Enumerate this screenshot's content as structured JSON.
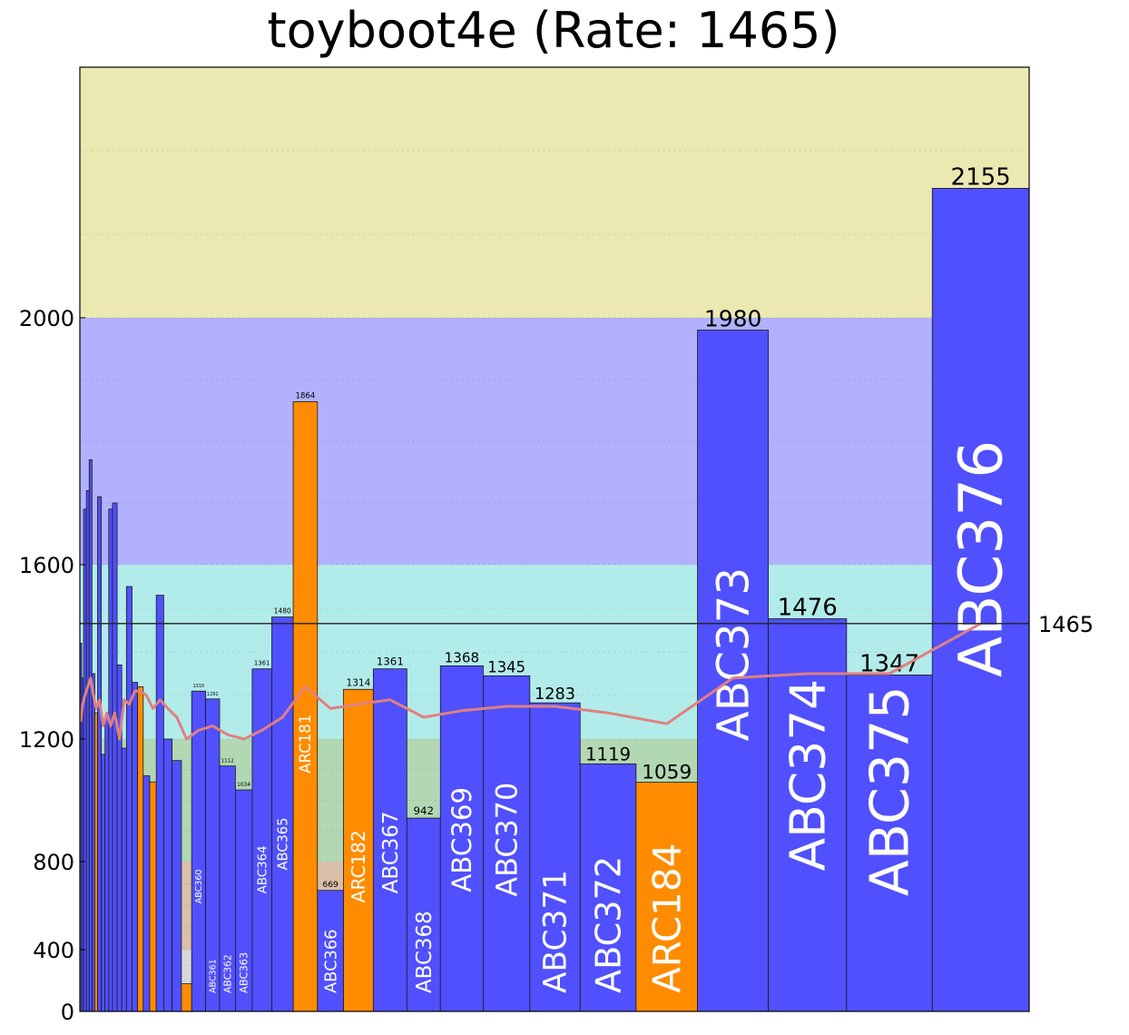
{
  "chart_data": {
    "type": "bar",
    "title": "toyboot4e (Rate: 1465)",
    "ylim": [
      0,
      2300
    ],
    "yticks": [
      0,
      400,
      800,
      1200,
      1600,
      2000
    ],
    "rate_line": {
      "value": 1465,
      "label": "1465"
    },
    "bands": [
      {
        "from": 0,
        "to": 400,
        "color": "#d9d9d9"
      },
      {
        "from": 400,
        "to": 800,
        "color": "#d9c0a9"
      },
      {
        "from": 800,
        "to": 1200,
        "color": "#b1d8b3"
      },
      {
        "from": 1200,
        "to": 1600,
        "color": "#b2ecea"
      },
      {
        "from": 1600,
        "to": 2000,
        "color": "#b1b1fe"
      },
      {
        "from": 2000,
        "to": 2300,
        "color": "#ebe9b1"
      }
    ],
    "bar_colors": {
      "ABC": "#5050ff",
      "ARC": "#ff8c00"
    },
    "curve_color": "#e08080",
    "bars": [
      {
        "label": "",
        "value": 1420,
        "type": "ABC",
        "rating": 1240
      },
      {
        "label": "",
        "value": 1340,
        "type": "ABC",
        "rating": 1280
      },
      {
        "label": "",
        "value": 1690,
        "type": "ABC",
        "rating": 1300
      },
      {
        "label": "",
        "value": 1720,
        "type": "ABC",
        "rating": 1320
      },
      {
        "label": "",
        "value": 1770,
        "type": "ABC",
        "rating": 1340
      },
      {
        "label": "",
        "value": 1350,
        "type": "ABC",
        "rating": 1300
      },
      {
        "label": "",
        "value": 1260,
        "type": "ARC",
        "rating": 1270
      },
      {
        "label": "",
        "value": 1710,
        "type": "ABC",
        "rating": 1290
      },
      {
        "label": "",
        "value": 1150,
        "type": "ABC",
        "rating": 1230
      },
      {
        "label": "",
        "value": 1250,
        "type": "ABC",
        "rating": 1260
      },
      {
        "label": "",
        "value": 1690,
        "type": "ABC",
        "rating": 1230
      },
      {
        "label": "",
        "value": 1700,
        "type": "ABC",
        "rating": 1260
      },
      {
        "label": "",
        "value": 1370,
        "type": "ABC",
        "rating": 1200
      },
      {
        "label": "",
        "value": 1170,
        "type": "ABC",
        "rating": 1290
      },
      {
        "label": "",
        "value": 1550,
        "type": "ABC",
        "rating": 1280
      },
      {
        "label": "",
        "value": 1330,
        "type": "ABC",
        "rating": 1310
      },
      {
        "label": "",
        "value": 1320,
        "type": "ARC",
        "rating": 1310
      },
      {
        "label": "",
        "value": 1080,
        "type": "ABC",
        "rating": 1300
      },
      {
        "label": "",
        "value": 1060,
        "type": "ARC",
        "rating": 1270
      },
      {
        "label": "",
        "value": 1530,
        "type": "ABC",
        "rating": 1290
      },
      {
        "label": "",
        "value": 1200,
        "type": "ABC",
        "rating": 1270
      },
      {
        "label": "",
        "value": 1130,
        "type": "ABC",
        "rating": 1250
      },
      {
        "label": "",
        "value": 179,
        "type": "ARC",
        "rating": 1200
      },
      {
        "label": "ABC360",
        "value": 1310,
        "type": "ABC",
        "rating": 1220
      },
      {
        "label": "ABC361",
        "value": 1292,
        "type": "ABC",
        "rating": 1230
      },
      {
        "label": "ABC362",
        "value": 1112,
        "type": "ABC",
        "rating": 1210
      },
      {
        "label": "ABC363",
        "value": 1034,
        "type": "ABC",
        "rating": 1200
      },
      {
        "label": "ABC364",
        "value": 1361,
        "type": "ABC",
        "rating": 1220
      },
      {
        "label": "ABC365",
        "value": 1480,
        "type": "ABC",
        "rating": 1250
      },
      {
        "label": "ARC181",
        "value": 1864,
        "type": "ARC",
        "rating": 1320
      },
      {
        "label": "ABC366",
        "value": 669,
        "type": "ABC",
        "rating": 1270
      },
      {
        "label": "ARC182",
        "value": 1314,
        "type": "ARC",
        "rating": 1280
      },
      {
        "label": "ABC367",
        "value": 1361,
        "type": "ABC",
        "rating": 1290
      },
      {
        "label": "ABC368",
        "value": 942,
        "type": "ABC",
        "rating": 1250
      },
      {
        "label": "ABC369",
        "value": 1368,
        "type": "ABC",
        "rating": 1265
      },
      {
        "label": "ABC370",
        "value": 1345,
        "type": "ABC",
        "rating": 1275
      },
      {
        "label": "ABC371",
        "value": 1283,
        "type": "ABC",
        "rating": 1275
      },
      {
        "label": "ABC372",
        "value": 1119,
        "type": "ABC",
        "rating": 1260
      },
      {
        "label": "ARC184",
        "value": 1059,
        "type": "ARC",
        "rating": 1235
      },
      {
        "label": "ABC373",
        "value": 1980,
        "type": "ABC",
        "rating": 1340
      },
      {
        "label": "ABC374",
        "value": 1476,
        "type": "ABC",
        "rating": 1350
      },
      {
        "label": "ABC375",
        "value": 1347,
        "type": "ABC",
        "rating": 1350
      },
      {
        "label": "ABC376",
        "value": 2155,
        "type": "ABC",
        "rating": 1465
      }
    ],
    "visible_value_labels": [
      "179",
      "1310",
      "1292",
      "1112",
      "1034",
      "1361",
      "1480",
      "1864",
      "669",
      "1314",
      "1361",
      "942",
      "1368",
      "1345",
      "1283",
      "1119",
      "1059",
      "1980",
      "1476",
      "1347",
      "2155"
    ]
  }
}
